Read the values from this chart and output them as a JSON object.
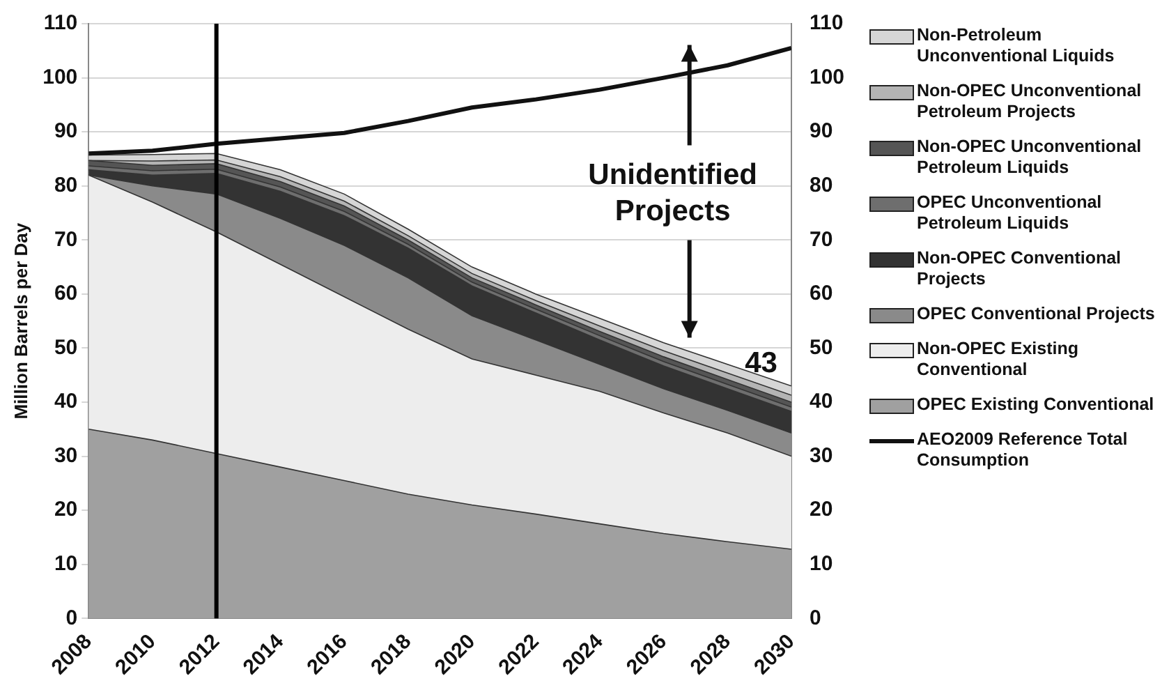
{
  "chart_data": {
    "type": "area",
    "stacked": true,
    "ylabel": "Million Barrels per Day",
    "x": [
      2008,
      2010,
      2012,
      2014,
      2016,
      2018,
      2020,
      2022,
      2024,
      2026,
      2028,
      2030
    ],
    "series": [
      {
        "name": "OPEC Existing Conventional",
        "color": "#a0a0a0",
        "values": [
          35,
          33,
          30.5,
          28,
          25.5,
          23,
          21,
          19.3,
          17.5,
          15.7,
          14.2,
          12.8
        ]
      },
      {
        "name": "Non-OPEC Existing Conventional",
        "color": "#ededed",
        "values": [
          47,
          44,
          41,
          37.5,
          34,
          30.5,
          27,
          25.7,
          24.5,
          22.3,
          20.1,
          17.2
        ]
      },
      {
        "name": "OPEC Conventional Projects",
        "color": "#8a8a8a",
        "values": [
          0,
          3,
          7,
          8.5,
          9.5,
          9.5,
          8,
          6.5,
          5,
          4.5,
          4.2,
          4.3
        ]
      },
      {
        "name": "Non-OPEC Conventional Projects",
        "color": "#333333",
        "values": [
          1,
          2,
          3.8,
          5,
          5.5,
          5.5,
          5.5,
          5,
          4.5,
          4.2,
          4,
          4
        ]
      },
      {
        "name": "OPEC Unconventional Petroleum Liquids",
        "color": "#6e6e6e",
        "values": [
          0.7,
          0.8,
          0.8,
          0.8,
          0.8,
          0.7,
          0.7,
          0.7,
          0.8,
          0.8,
          0.8,
          0.8
        ]
      },
      {
        "name": "Non-OPEC Unconventional Petroleum Liquids",
        "color": "#555555",
        "values": [
          1,
          1,
          1,
          1,
          1,
          0.8,
          0.8,
          0.8,
          0.8,
          0.9,
          0.9,
          0.9
        ]
      },
      {
        "name": "Non-OPEC Unconventional Petroleum Projects",
        "color": "#b4b4b4",
        "values": [
          0,
          0.8,
          0.7,
          0.9,
          0.9,
          0.8,
          0.8,
          0.8,
          1,
          1.1,
          1.2,
          1.3
        ]
      },
      {
        "name": "Non-Petroleum Unconventional Liquids",
        "color": "#d6d6d6",
        "values": [
          1,
          1.2,
          1.2,
          1.3,
          1.3,
          1.2,
          1.2,
          1.2,
          1.4,
          1.5,
          1.6,
          1.7
        ]
      },
      {
        "name": "AEO2009 Reference Total Consumption",
        "type": "line",
        "color": "#111111",
        "values": [
          86,
          86.5,
          87.8,
          88.8,
          89.8,
          92,
          94.5,
          96,
          97.8,
          100,
          102.3,
          105.5
        ]
      }
    ],
    "xlim": [
      2008,
      2030
    ],
    "xticks": [
      2008,
      2010,
      2012,
      2014,
      2016,
      2018,
      2020,
      2022,
      2024,
      2026,
      2028,
      2030
    ],
    "ylim": [
      0,
      110
    ],
    "yticks": [
      0,
      10,
      20,
      30,
      40,
      50,
      60,
      70,
      80,
      90,
      100,
      110
    ],
    "y2lim": [
      0,
      110
    ],
    "y2ticks": [
      0,
      10,
      20,
      30,
      40,
      50,
      60,
      70,
      80,
      90,
      100,
      110
    ],
    "grid": "y",
    "legend": "right",
    "marker": "none",
    "ref_lines": [
      {
        "axis": "x",
        "value": 2012,
        "color": "#000000"
      }
    ],
    "annotations": [
      "Unidentified Projects",
      {
        "text": "43",
        "x": 2030,
        "y": 43
      }
    ]
  }
}
